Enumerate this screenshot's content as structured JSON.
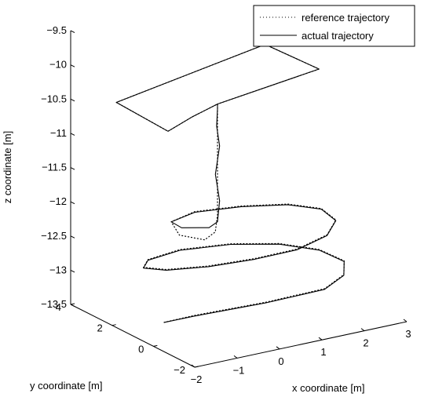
{
  "chart_data": {
    "type": "line",
    "projection": "3d",
    "xlabel": "x coordinate [m]",
    "ylabel": "y coordinate [m]",
    "zlabel": "z coordinate [m]",
    "xlim": [
      -2,
      3
    ],
    "ylim": [
      -2,
      4
    ],
    "zlim": [
      -13.5,
      -9.5
    ],
    "x_ticks": [
      "−2",
      "−1",
      "0",
      "1",
      "2",
      "3"
    ],
    "y_ticks": [
      "−2",
      "0",
      "2",
      "4"
    ],
    "z_ticks": [
      "−9.5",
      "−10",
      "−10.5",
      "−11",
      "−11.5",
      "−12",
      "−12.5",
      "−13",
      "−13.5"
    ],
    "grid": false,
    "legend_position": "top-right",
    "series": [
      {
        "name": "reference trajectory",
        "style": "dotted",
        "color": "#000000",
        "points": [
          [
            -1.6,
            0.3,
            -13.25
          ],
          [
            -1.0,
            0.1,
            -13.2
          ],
          [
            -0.3,
            -0.2,
            -13.15
          ],
          [
            0.4,
            -0.5,
            -13.1
          ],
          [
            1.0,
            -0.7,
            -13.05
          ],
          [
            1.6,
            -0.9,
            -13.0
          ],
          [
            2.2,
            -0.6,
            -12.92
          ],
          [
            2.5,
            0.0,
            -12.85
          ],
          [
            2.3,
            0.8,
            -12.78
          ],
          [
            1.7,
            1.5,
            -12.72
          ],
          [
            0.8,
            2.0,
            -12.68
          ],
          [
            -0.3,
            2.2,
            -12.65
          ],
          [
            -1.2,
            1.9,
            -12.63
          ],
          [
            -1.6,
            1.3,
            -12.6
          ],
          [
            -1.4,
            0.6,
            -12.55
          ],
          [
            -0.7,
            0.0,
            -12.5
          ],
          [
            0.2,
            -0.4,
            -12.45
          ],
          [
            1.1,
            -0.6,
            -12.4
          ],
          [
            1.9,
            -0.4,
            -12.33
          ],
          [
            2.4,
            0.2,
            -12.27
          ],
          [
            2.4,
            0.9,
            -12.21
          ],
          [
            1.9,
            1.5,
            -12.17
          ],
          [
            1.0,
            1.9,
            -12.14
          ],
          [
            0.0,
            2.1,
            -12.12
          ],
          [
            -0.7,
            1.8,
            -12.13
          ],
          [
            -0.8,
            1.2,
            -12.22
          ],
          [
            -0.4,
            0.8,
            -12.28
          ],
          [
            -0.1,
            0.9,
            -12.22
          ],
          [
            0.0,
            1.0,
            -12.0
          ],
          [
            0.0,
            1.0,
            -11.6
          ],
          [
            0.0,
            1.0,
            -11.2
          ],
          [
            0.0,
            1.0,
            -10.8
          ],
          [
            0.0,
            1.0,
            -10.45
          ],
          [
            0.0,
            1.0,
            -10.38
          ],
          [
            -0.9,
            0.4,
            -10.36
          ],
          [
            -1.8,
            -0.3,
            -10.34
          ],
          [
            -1.8,
            2.2,
            -10.3
          ],
          [
            2.0,
            2.8,
            -10.05
          ],
          [
            2.2,
            0.6,
            -10.1
          ],
          [
            0.0,
            1.0,
            -10.38
          ]
        ]
      },
      {
        "name": "actual trajectory",
        "style": "solid",
        "color": "#000000",
        "points": [
          [
            -1.6,
            0.3,
            -13.25
          ],
          [
            -1.0,
            0.1,
            -13.21
          ],
          [
            -0.3,
            -0.2,
            -13.16
          ],
          [
            0.4,
            -0.5,
            -13.11
          ],
          [
            1.0,
            -0.7,
            -13.06
          ],
          [
            1.6,
            -0.9,
            -13.01
          ],
          [
            2.2,
            -0.6,
            -12.93
          ],
          [
            2.5,
            0.0,
            -12.86
          ],
          [
            2.3,
            0.8,
            -12.79
          ],
          [
            1.7,
            1.5,
            -12.73
          ],
          [
            0.8,
            2.0,
            -12.69
          ],
          [
            -0.3,
            2.2,
            -12.66
          ],
          [
            -1.2,
            1.9,
            -12.64
          ],
          [
            -1.6,
            1.3,
            -12.61
          ],
          [
            -1.4,
            0.6,
            -12.56
          ],
          [
            -0.7,
            0.0,
            -12.51
          ],
          [
            0.2,
            -0.4,
            -12.46
          ],
          [
            1.1,
            -0.6,
            -12.41
          ],
          [
            1.9,
            -0.4,
            -12.34
          ],
          [
            2.4,
            0.2,
            -12.28
          ],
          [
            2.4,
            0.9,
            -12.22
          ],
          [
            1.9,
            1.5,
            -12.18
          ],
          [
            1.0,
            1.9,
            -12.15
          ],
          [
            0.0,
            2.1,
            -12.13
          ],
          [
            -0.7,
            1.8,
            -12.13
          ],
          [
            -0.7,
            1.3,
            -12.14
          ],
          [
            -0.2,
            1.0,
            -12.16
          ],
          [
            0.0,
            1.0,
            -12.1
          ],
          [
            0.05,
            1.0,
            -11.8
          ],
          [
            -0.05,
            1.0,
            -11.4
          ],
          [
            0.05,
            1.0,
            -11.0
          ],
          [
            -0.02,
            1.0,
            -10.7
          ],
          [
            0.0,
            1.0,
            -10.45
          ],
          [
            0.0,
            1.0,
            -10.38
          ],
          [
            -0.9,
            0.4,
            -10.36
          ],
          [
            -1.8,
            -0.3,
            -10.34
          ],
          [
            -1.8,
            2.2,
            -10.3
          ],
          [
            2.0,
            2.8,
            -10.05
          ],
          [
            2.2,
            0.6,
            -10.1
          ],
          [
            0.0,
            1.0,
            -10.38
          ]
        ]
      }
    ]
  }
}
